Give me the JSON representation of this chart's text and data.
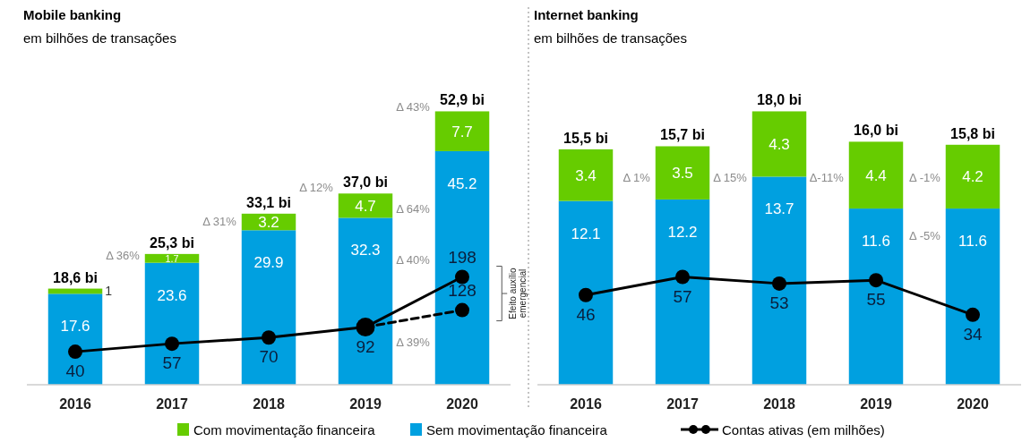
{
  "chart_data": [
    {
      "type": "bar",
      "title": "Mobile banking",
      "subtitle": "em bilhões de transações",
      "categories": [
        "2016",
        "2017",
        "2018",
        "2019",
        "2020"
      ],
      "stacked": true,
      "data_labels": true,
      "legend": "bottom",
      "tick_labels": "x",
      "series": [
        {
          "name": "Sem movimentação financeira",
          "color": "#00a0e0",
          "values": [
            17.6,
            23.6,
            29.9,
            32.3,
            45.2
          ]
        },
        {
          "name": "Com movimentação financeira",
          "color": "#66cc00",
          "values": [
            1,
            1.7,
            3.2,
            4.7,
            7.7
          ]
        },
        {
          "name": "Contas ativas (em milhões)",
          "type": "line",
          "axis": "y2",
          "color": "#000000",
          "marker": "circle",
          "line_style": "solid",
          "values": [
            40,
            57,
            70,
            92,
            198
          ]
        },
        {
          "type": "line",
          "axis": "y2",
          "color": "#000000",
          "marker": "circle",
          "line_style": "dashed",
          "values": [
            null,
            null,
            null,
            92,
            128
          ],
          "value_labels": [
            null,
            null,
            null,
            null,
            "128"
          ]
        }
      ],
      "totals": [
        "18,6 bi",
        "25,3 bi",
        "33,1 bi",
        "37,0 bi",
        "52,9 bi"
      ],
      "annotations": [
        "Δ 36%",
        "Δ 31%",
        "Δ 12%",
        "Δ 43%",
        "Δ 64%",
        "Δ 40%",
        "Δ 39%",
        "Efeito auxílio emergencial"
      ]
    },
    {
      "type": "bar",
      "title": "Internet banking",
      "subtitle": "em bilhões de transações",
      "categories": [
        "2016",
        "2017",
        "2018",
        "2019",
        "2020"
      ],
      "stacked": true,
      "data_labels": true,
      "tick_labels": "x",
      "series": [
        {
          "color": "#00a0e0",
          "values": [
            12.1,
            12.2,
            13.7,
            11.6,
            11.6
          ]
        },
        {
          "color": "#66cc00",
          "values": [
            3.4,
            3.5,
            4.3,
            4.4,
            4.2
          ]
        },
        {
          "type": "line",
          "axis": "y2",
          "color": "#000000",
          "marker": "circle",
          "line_style": "solid",
          "values": [
            46,
            57,
            53,
            55,
            34
          ]
        }
      ],
      "totals": [
        "15,5 bi",
        "15,7 bi",
        "18,0 bi",
        "16,0 bi",
        "15,8 bi"
      ],
      "annotations": [
        "Δ 1%",
        "Δ 15%",
        "Δ-11%",
        "Δ -1%",
        "Δ -5%"
      ]
    }
  ]
}
